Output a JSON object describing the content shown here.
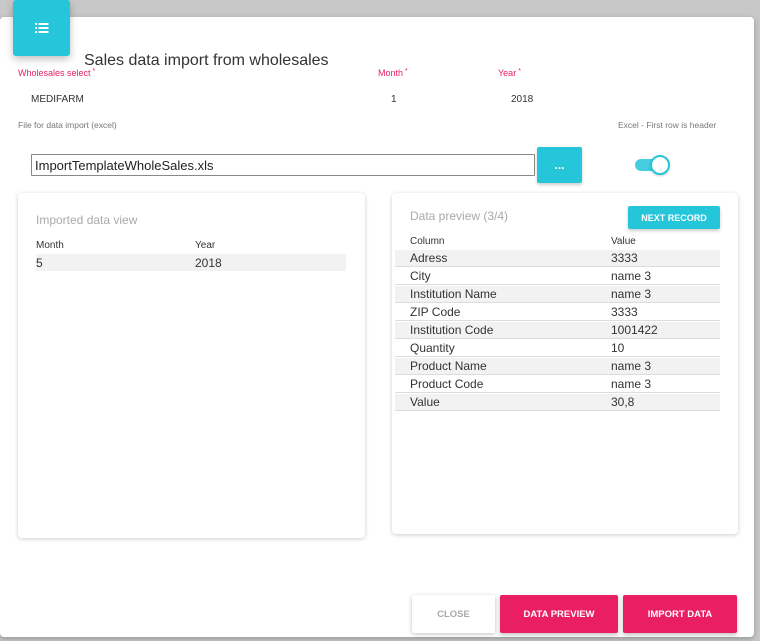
{
  "dialog": {
    "title": "Sales data import from wholesales",
    "header_icon": "list-icon"
  },
  "form": {
    "wholesales_label": "Wholesales select",
    "wholesales_value": "MEDIFARM",
    "month_label": "Month",
    "month_value": "1",
    "year_label": "Year",
    "year_value": "2018",
    "required_marker": "*",
    "file_label": "File for data import (excel)",
    "file_value": "ImportTemplateWholeSales.xls",
    "browse_label": "...",
    "header_toggle_label": "Excel - First row is header",
    "header_toggle_on": true
  },
  "imported_view": {
    "title": "Imported data view",
    "columns": [
      "Month",
      "Year"
    ],
    "rows": [
      [
        "5",
        "2018"
      ]
    ]
  },
  "preview": {
    "title": "Data preview (3/4)",
    "next_label": "NEXT RECORD",
    "columns": [
      "Column",
      "Value"
    ],
    "rows": [
      [
        "Adress",
        "3333"
      ],
      [
        "City",
        "name 3"
      ],
      [
        "Institution Name",
        "name 3"
      ],
      [
        "ZIP Code",
        "3333"
      ],
      [
        "Institution Code",
        "1001422"
      ],
      [
        "Quantity",
        "10"
      ],
      [
        "Product Name",
        "name 3"
      ],
      [
        "Product Code",
        "name 3"
      ],
      [
        "Value",
        "30,8"
      ]
    ]
  },
  "footer": {
    "close_label": "CLOSE",
    "preview_label": "DATA PREVIEW",
    "import_label": "IMPORT DATA"
  },
  "colors": {
    "accent": "#26c6da",
    "primary_action": "#e91e63"
  }
}
